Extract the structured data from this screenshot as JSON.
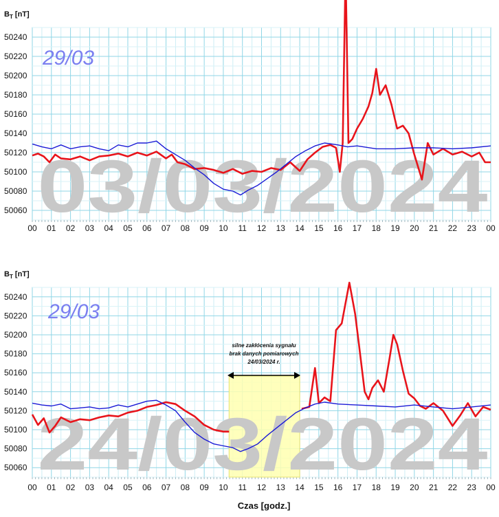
{
  "chart_data": [
    {
      "type": "line",
      "ylabel_main": "B",
      "ylabel_sub": "T",
      "ylabel_unit": " [nT]",
      "date_label": "29/03",
      "watermark": "03/03/2024",
      "ylim": [
        50050,
        50250
      ],
      "yticks": [
        50060,
        50080,
        50100,
        50120,
        50140,
        50160,
        50180,
        50200,
        50220,
        50240
      ],
      "xlim": [
        0,
        24
      ],
      "xticks": [
        "00",
        "01",
        "02",
        "03",
        "04",
        "05",
        "06",
        "07",
        "08",
        "09",
        "10",
        "11",
        "12",
        "13",
        "14",
        "15",
        "16",
        "17",
        "18",
        "19",
        "20",
        "21",
        "22",
        "23",
        "00"
      ],
      "grid": true,
      "series": [
        {
          "color": "#e8141b",
          "points": [
            [
              0,
              50117
            ],
            [
              0.3,
              50119
            ],
            [
              0.6,
              50116
            ],
            [
              0.9,
              50110
            ],
            [
              1.2,
              50118
            ],
            [
              1.5,
              50114
            ],
            [
              2,
              50113
            ],
            [
              2.5,
              50116
            ],
            [
              3,
              50112
            ],
            [
              3.5,
              50116
            ],
            [
              4,
              50117
            ],
            [
              4.5,
              50119
            ],
            [
              5,
              50116
            ],
            [
              5.5,
              50120
            ],
            [
              6,
              50117
            ],
            [
              6.5,
              50121
            ],
            [
              7,
              50114
            ],
            [
              7.3,
              50118
            ],
            [
              7.6,
              50110
            ],
            [
              8,
              50108
            ],
            [
              8.5,
              50103
            ],
            [
              9,
              50104
            ],
            [
              9.5,
              50102
            ],
            [
              10,
              50099
            ],
            [
              10.5,
              50103
            ],
            [
              11,
              50098
            ],
            [
              11.5,
              50101
            ],
            [
              12,
              50100
            ],
            [
              12.5,
              50104
            ],
            [
              13,
              50102
            ],
            [
              13.5,
              50110
            ],
            [
              14,
              50101
            ],
            [
              14.4,
              50113
            ],
            [
              14.8,
              50120
            ],
            [
              15.2,
              50126
            ],
            [
              15.6,
              50128
            ],
            [
              15.9,
              50125
            ],
            [
              16.1,
              50100
            ],
            [
              16.25,
              50130
            ],
            [
              16.4,
              50310
            ],
            [
              16.55,
              50130
            ],
            [
              16.75,
              50134
            ],
            [
              17,
              50145
            ],
            [
              17.3,
              50155
            ],
            [
              17.6,
              50168
            ],
            [
              17.8,
              50182
            ],
            [
              18.0,
              50207
            ],
            [
              18.2,
              50180
            ],
            [
              18.5,
              50190
            ],
            [
              18.8,
              50170
            ],
            [
              19.1,
              50145
            ],
            [
              19.4,
              50148
            ],
            [
              19.7,
              50140
            ],
            [
              20.0,
              50118
            ],
            [
              20.4,
              50092
            ],
            [
              20.7,
              50130
            ],
            [
              21,
              50118
            ],
            [
              21.5,
              50124
            ],
            [
              22,
              50118
            ],
            [
              22.5,
              50121
            ],
            [
              23,
              50116
            ],
            [
              23.4,
              50120
            ],
            [
              23.7,
              50110
            ],
            [
              24,
              50110
            ]
          ]
        },
        {
          "color": "#1a1ad6",
          "points": [
            [
              0,
              50129
            ],
            [
              0.5,
              50126
            ],
            [
              1,
              50124
            ],
            [
              1.5,
              50128
            ],
            [
              2,
              50124
            ],
            [
              2.5,
              50126
            ],
            [
              3,
              50127
            ],
            [
              3.5,
              50124
            ],
            [
              4,
              50122
            ],
            [
              4.5,
              50128
            ],
            [
              5,
              50126
            ],
            [
              5.5,
              50130
            ],
            [
              6,
              50130
            ],
            [
              6.5,
              50132
            ],
            [
              7,
              50124
            ],
            [
              7.5,
              50118
            ],
            [
              8,
              50112
            ],
            [
              8.5,
              50104
            ],
            [
              9,
              50097
            ],
            [
              9.5,
              50088
            ],
            [
              10,
              50082
            ],
            [
              10.5,
              50080
            ],
            [
              10.9,
              50076
            ],
            [
              11.3,
              50081
            ],
            [
              11.8,
              50086
            ],
            [
              12.3,
              50093
            ],
            [
              12.8,
              50100
            ],
            [
              13.3,
              50108
            ],
            [
              13.8,
              50116
            ],
            [
              14.3,
              50122
            ],
            [
              14.8,
              50127
            ],
            [
              15.3,
              50130
            ],
            [
              16,
              50128
            ],
            [
              16.5,
              50126
            ],
            [
              17,
              50127
            ],
            [
              18,
              50124
            ],
            [
              19,
              50124
            ],
            [
              20,
              50125
            ],
            [
              21,
              50125
            ],
            [
              22,
              50124
            ],
            [
              23,
              50125
            ],
            [
              24,
              50127
            ]
          ]
        }
      ]
    },
    {
      "type": "line",
      "ylabel_main": "B",
      "ylabel_sub": "T",
      "ylabel_unit": " [nT]",
      "date_label": "29/03",
      "watermark": "24/03/2024",
      "xlabel": "Czas [godz.]",
      "ylim": [
        50050,
        50250
      ],
      "yticks": [
        50060,
        50080,
        50100,
        50120,
        50140,
        50160,
        50180,
        50200,
        50220,
        50240
      ],
      "xlim": [
        0,
        24
      ],
      "xticks": [
        "00",
        "01",
        "02",
        "03",
        "04",
        "05",
        "06",
        "07",
        "08",
        "09",
        "10",
        "11",
        "12",
        "13",
        "14",
        "15",
        "16",
        "17",
        "18",
        "19",
        "20",
        "21",
        "22",
        "23",
        "00"
      ],
      "grid": true,
      "highlight": {
        "from": 10.3,
        "to": 14.0,
        "color": "#ffffb0"
      },
      "annotation": [
        "silne zakłócenia sygnału",
        "brak danych pomiarowych",
        "24/03/2024 r."
      ],
      "series": [
        {
          "color": "#e8141b",
          "segments": [
            [
              [
                0,
                50116
              ],
              [
                0.3,
                50105
              ],
              [
                0.6,
                50112
              ],
              [
                0.9,
                50097
              ],
              [
                1.2,
                50104
              ],
              [
                1.5,
                50113
              ],
              [
                2,
                50108
              ],
              [
                2.5,
                50111
              ],
              [
                3,
                50110
              ],
              [
                3.5,
                50113
              ],
              [
                4,
                50115
              ],
              [
                4.5,
                50114
              ],
              [
                5,
                50118
              ],
              [
                5.5,
                50120
              ],
              [
                6,
                50124
              ],
              [
                6.5,
                50126
              ],
              [
                7,
                50129
              ],
              [
                7.5,
                50127
              ],
              [
                8,
                50120
              ],
              [
                8.5,
                50114
              ],
              [
                9,
                50105
              ],
              [
                9.5,
                50100
              ],
              [
                10,
                50098
              ],
              [
                10.3,
                50098
              ]
            ],
            [
              [
                14.1,
                50122
              ],
              [
                14.5,
                50124
              ],
              [
                14.8,
                50165
              ],
              [
                15,
                50128
              ],
              [
                15.3,
                50134
              ],
              [
                15.6,
                50130
              ],
              [
                15.9,
                50205
              ],
              [
                16.2,
                50212
              ],
              [
                16.6,
                50255
              ],
              [
                16.9,
                50222
              ],
              [
                17.1,
                50190
              ],
              [
                17.4,
                50140
              ],
              [
                17.6,
                50132
              ],
              [
                17.8,
                50144
              ],
              [
                18.1,
                50152
              ],
              [
                18.4,
                50140
              ],
              [
                18.7,
                50175
              ],
              [
                18.9,
                50200
              ],
              [
                19.1,
                50190
              ],
              [
                19.4,
                50162
              ],
              [
                19.7,
                50138
              ],
              [
                20.0,
                50133
              ],
              [
                20.3,
                50125
              ],
              [
                20.6,
                50122
              ],
              [
                21,
                50128
              ],
              [
                21.5,
                50120
              ],
              [
                22,
                50104
              ],
              [
                22.4,
                50115
              ],
              [
                22.8,
                50128
              ],
              [
                23.2,
                50114
              ],
              [
                23.6,
                50124
              ],
              [
                24,
                50121
              ]
            ]
          ]
        },
        {
          "color": "#1a1ad6",
          "points": [
            [
              0,
              50128
            ],
            [
              0.5,
              50126
            ],
            [
              1,
              50125
            ],
            [
              1.5,
              50127
            ],
            [
              2,
              50122
            ],
            [
              2.5,
              50123
            ],
            [
              3,
              50124
            ],
            [
              3.5,
              50122
            ],
            [
              4,
              50123
            ],
            [
              4.5,
              50126
            ],
            [
              5,
              50124
            ],
            [
              5.5,
              50127
            ],
            [
              6,
              50130
            ],
            [
              6.5,
              50131
            ],
            [
              7,
              50126
            ],
            [
              7.5,
              50120
            ],
            [
              8,
              50108
            ],
            [
              8.5,
              50097
            ],
            [
              9,
              50090
            ],
            [
              9.5,
              50085
            ],
            [
              10,
              50083
            ],
            [
              10.5,
              50081
            ],
            [
              10.9,
              50077
            ],
            [
              11.3,
              50080
            ],
            [
              11.8,
              50085
            ],
            [
              12.3,
              50094
            ],
            [
              12.8,
              50102
            ],
            [
              13.3,
              50110
            ],
            [
              13.8,
              50118
            ],
            [
              14.3,
              50123
            ],
            [
              14.8,
              50127
            ],
            [
              15.3,
              50129
            ],
            [
              16,
              50127
            ],
            [
              17,
              50126
            ],
            [
              18,
              50125
            ],
            [
              19,
              50124
            ],
            [
              20,
              50126
            ],
            [
              21,
              50124
            ],
            [
              22,
              50122
            ],
            [
              23,
              50124
            ],
            [
              24,
              50126
            ]
          ]
        }
      ]
    }
  ]
}
